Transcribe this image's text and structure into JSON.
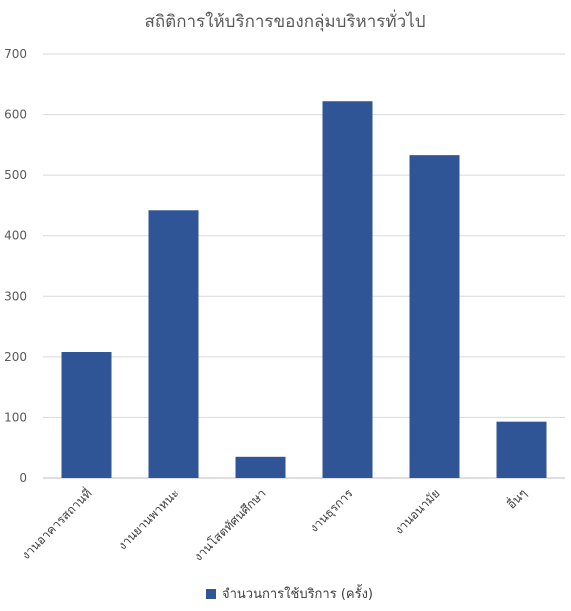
{
  "chart_data": {
    "type": "bar",
    "title": "สถิติการให้บริการของกลุ่มบริหารทั่วไป",
    "categories": [
      "งานอาคารสถานที่",
      "งานยานพาหนะ",
      "งานโสตทัศนศึกษา",
      "งานธุรการ",
      "งานอนามัย",
      "อื่นๆ"
    ],
    "series": [
      {
        "name": "จำนวนการใช้บริการ (ครั้ง)",
        "values": [
          208,
          442,
          35,
          622,
          533,
          93
        ],
        "color": "#2f5597"
      }
    ],
    "ylim": [
      0,
      700
    ],
    "yticks": [
      0,
      100,
      200,
      300,
      400,
      500,
      600,
      700
    ],
    "grid": true,
    "legend_position": "bottom"
  }
}
